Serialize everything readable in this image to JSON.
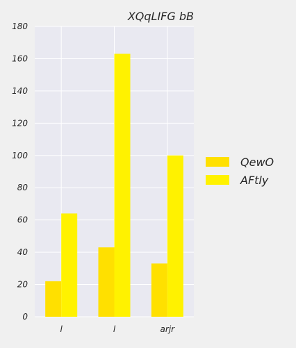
{
  "chart_data": {
    "type": "bar",
    "title": "XQqLIFG bB",
    "xlabel": "",
    "ylabel": "",
    "categories": [
      "l",
      "l",
      "arjr"
    ],
    "series": [
      {
        "name": "QewO",
        "values": [
          22,
          43,
          33
        ],
        "color": "#ffe000"
      },
      {
        "name": "AFtly",
        "values": [
          64,
          163,
          100
        ],
        "color": "#fff200"
      }
    ],
    "ylim": [
      0,
      180
    ],
    "yticks": [
      0,
      20,
      40,
      60,
      80,
      100,
      120,
      140,
      160,
      180
    ],
    "grid": true,
    "legend_position": "right",
    "plot_background": "#e9e9f1",
    "grid_color": "#ffffff"
  }
}
